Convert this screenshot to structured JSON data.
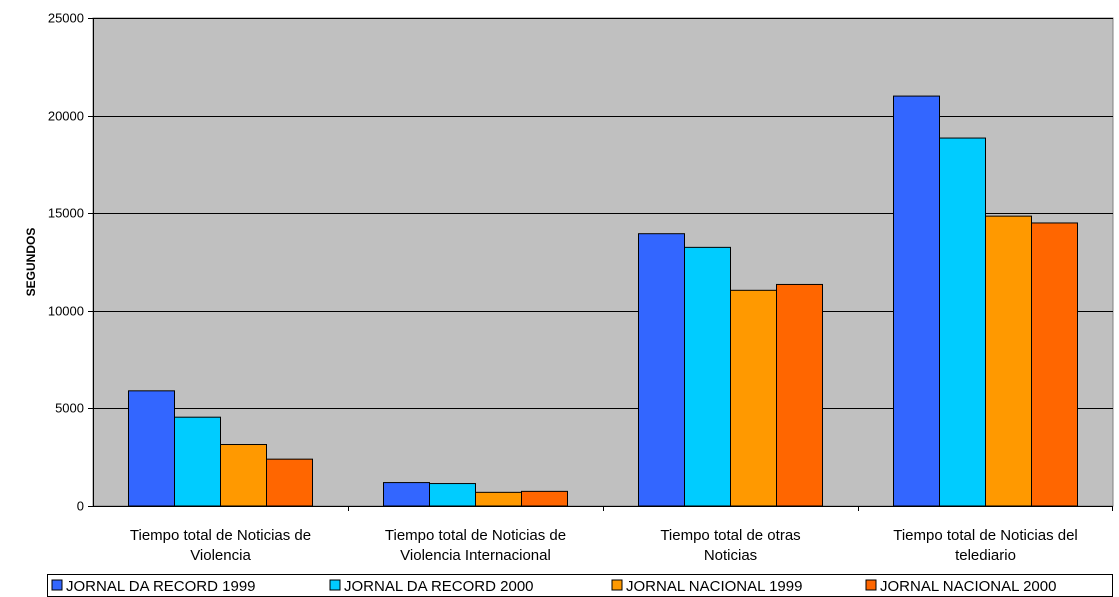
{
  "chart_data": {
    "type": "bar",
    "title": "",
    "xlabel": "",
    "ylabel": "SEGUNDOS",
    "ylim": [
      0,
      25000
    ],
    "yticks": [
      0,
      5000,
      10000,
      15000,
      20000,
      25000
    ],
    "grid": true,
    "legend_position": "bottom",
    "categories": [
      [
        "Tiempo total de Noticias de",
        "Violencia"
      ],
      [
        "Tiempo total de Noticias de",
        "Violencia Internacional"
      ],
      [
        "Tiempo total de otras",
        "Noticias"
      ],
      [
        "Tiempo total de Noticias del",
        "telediario"
      ]
    ],
    "series": [
      {
        "name": "JORNAL DA RECORD 1999",
        "color": "#3366FF",
        "values": [
          5900,
          1200,
          13950,
          21000
        ]
      },
      {
        "name": "JORNAL DA RECORD 2000",
        "color": "#00CCFF",
        "values": [
          4550,
          1150,
          13250,
          18850
        ]
      },
      {
        "name": "JORNAL NACIONAL 1999",
        "color": "#FF9900",
        "values": [
          3150,
          700,
          11050,
          14850
        ]
      },
      {
        "name": "JORNAL NACIONAL 2000",
        "color": "#FF6600",
        "values": [
          2400,
          750,
          11350,
          14500
        ]
      }
    ]
  }
}
